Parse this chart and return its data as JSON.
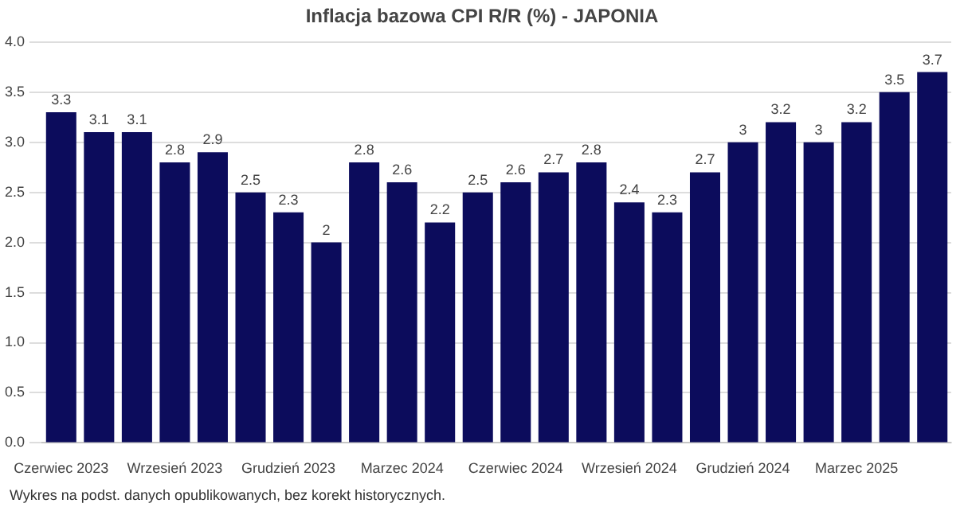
{
  "chart_data": {
    "type": "bar",
    "title": "Inflacja bazowa CPI R/R (%) - JAPONIA",
    "categories": [
      "Czerwiec 2023",
      null,
      null,
      "Wrzesień 2023",
      null,
      null,
      "Grudzień 2023",
      null,
      null,
      "Marzec 2024",
      null,
      null,
      "Czerwiec 2024",
      null,
      null,
      "Wrzesień 2024",
      null,
      null,
      "Grudzień 2024",
      null,
      null,
      "Marzec 2025",
      null,
      null
    ],
    "values": [
      3.3,
      3.1,
      3.1,
      2.8,
      2.9,
      2.5,
      2.3,
      2,
      2.8,
      2.6,
      2.2,
      2.5,
      2.6,
      2.7,
      2.8,
      2.4,
      2.3,
      2.7,
      3,
      3.2,
      3,
      3.2,
      3.5,
      3.7
    ],
    "color": "#0c0c5c",
    "ylim": [
      0,
      4
    ],
    "yticks": [
      {
        "value": 0,
        "label": "0.0"
      },
      {
        "value": 0.5,
        "label": "0.5"
      },
      {
        "value": 1,
        "label": "1.0"
      },
      {
        "value": 1.5,
        "label": "1.5"
      },
      {
        "value": 2,
        "label": "2.0"
      },
      {
        "value": 2.5,
        "label": "2.5"
      },
      {
        "value": 3,
        "label": "3.0"
      },
      {
        "value": 3.5,
        "label": "3.5"
      },
      {
        "value": 4,
        "label": "4.0"
      }
    ],
    "grid": "y",
    "data_labels": true,
    "legend": false,
    "annotations": [
      "Wykres na podst. danych opublikowanych, bez korekt historycznych."
    ]
  }
}
